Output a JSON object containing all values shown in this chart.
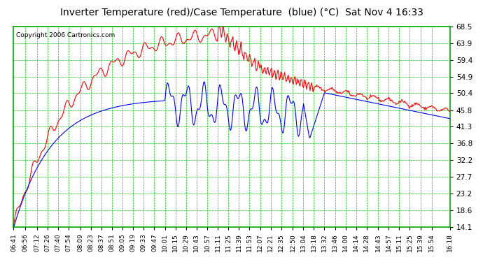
{
  "title": "Inverter Temperature (red)/Case Temperature  (blue) (°C)  Sat Nov 4 16:33",
  "copyright": "Copyright 2006 Cartronics.com",
  "bg_color": "#ffffff",
  "plot_bg_color": "#ffffff",
  "grid_color": "#00cc00",
  "border_color": "#00aa00",
  "y_ticks": [
    14.1,
    18.6,
    23.2,
    27.7,
    32.2,
    36.8,
    41.3,
    45.8,
    50.4,
    54.9,
    59.4,
    63.9,
    68.5
  ],
  "x_labels": [
    "06:41",
    "06:56",
    "07:12",
    "07:26",
    "07:40",
    "07:54",
    "08:09",
    "08:23",
    "08:37",
    "08:51",
    "09:05",
    "09:19",
    "09:33",
    "09:47",
    "10:01",
    "10:15",
    "10:29",
    "10:43",
    "10:57",
    "11:11",
    "11:25",
    "11:39",
    "11:53",
    "12:07",
    "12:21",
    "12:35",
    "12:50",
    "13:04",
    "13:18",
    "13:32",
    "13:46",
    "14:00",
    "14:14",
    "14:28",
    "14:43",
    "14:57",
    "15:11",
    "15:25",
    "15:39",
    "15:54",
    "16:18"
  ],
  "ymin": 14.1,
  "ymax": 68.5,
  "red_color": "#ff0000",
  "blue_color": "#0000ff",
  "line_width": 0.8
}
